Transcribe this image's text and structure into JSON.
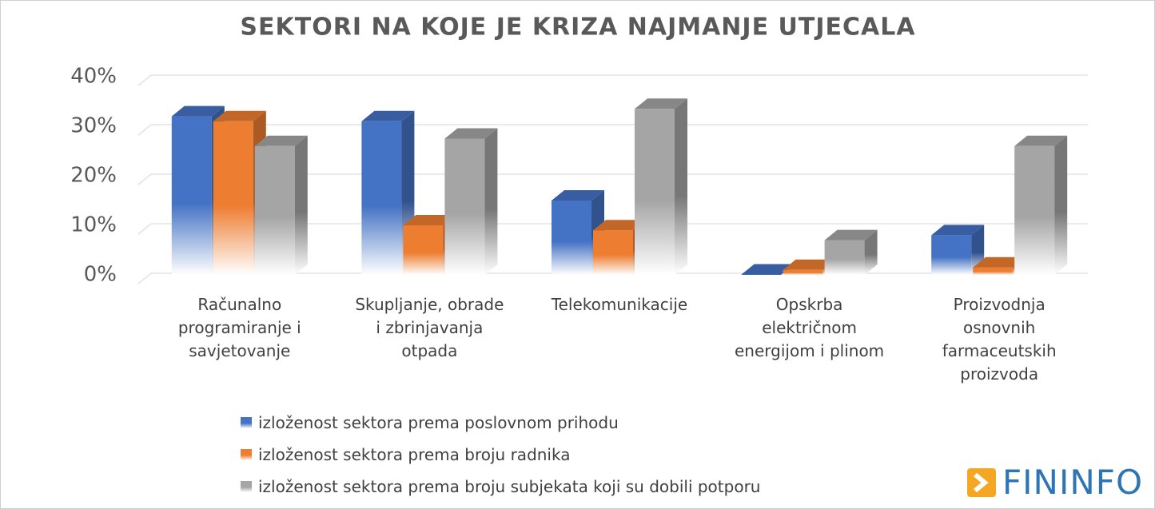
{
  "chart_data": {
    "type": "bar3d",
    "title": "SEKTORI NA KOJE JE KRIZA NAJMANJE UTJECALA",
    "categories": [
      "Računalno programiranje i savjetovanje",
      "Skupljanje, obrade i zbrinjavanja otpada",
      "Telekomunikacije",
      "Opskrba električnom energijom i plinom",
      "Proizvodnja osnovnih farmaceutskih proizvoda"
    ],
    "series": [
      {
        "name": "izloženost sektora prema poslovnom prihodu",
        "color": "#4472c4",
        "values": [
          32,
          31,
          15,
          0,
          8
        ]
      },
      {
        "name": "izloženost sektora prema broju radnika",
        "color": "#ed7d31",
        "values": [
          31,
          10,
          9,
          1,
          1.5
        ]
      },
      {
        "name": "izloženost sektora prema broju subjekata koji su dobili potporu",
        "color": "#a5a5a5",
        "values": [
          26,
          27.5,
          33.5,
          7,
          26
        ]
      }
    ],
    "ylim": [
      0,
      40
    ],
    "yticks": [
      {
        "value": 0,
        "label": "0%"
      },
      {
        "value": 10,
        "label": "10%"
      },
      {
        "value": 20,
        "label": "20%"
      },
      {
        "value": 30,
        "label": "30%"
      },
      {
        "value": 40,
        "label": "40%"
      }
    ],
    "grid": true
  },
  "logo": "FININFO"
}
